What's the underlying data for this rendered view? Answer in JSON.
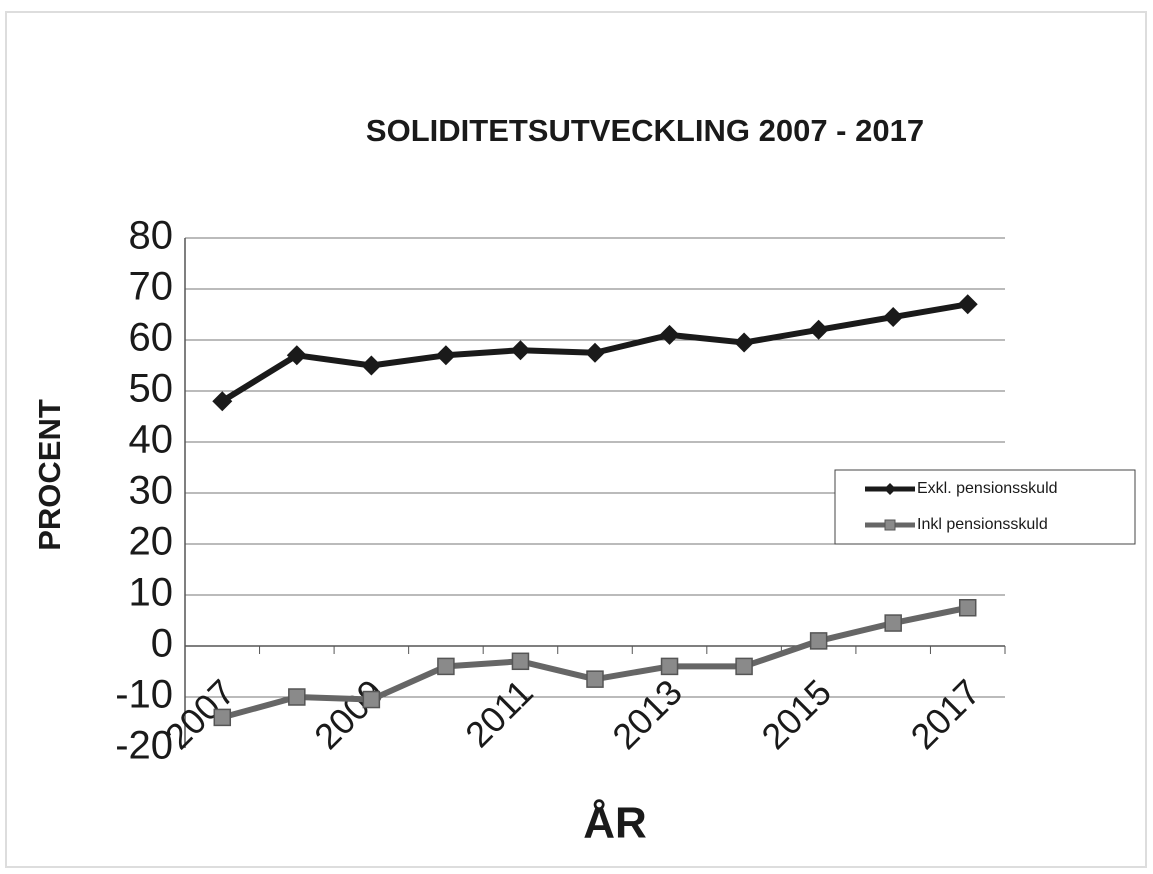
{
  "chart_data": {
    "type": "line",
    "title": "SOLIDITETSUTVECKLING 2007 - 2017",
    "y_label": "PROCENT",
    "x_label": "ÅR",
    "categories": [
      "2007",
      null,
      "2009",
      null,
      "2011",
      null,
      "2013",
      null,
      "2015",
      null,
      "2017"
    ],
    "series": [
      {
        "name": "Exkl. pensionsskuld",
        "color": "#1a1a1a",
        "marker": "diamond",
        "values": [
          48,
          57,
          55,
          57,
          58,
          57.5,
          61,
          59.5,
          62,
          64.5,
          67
        ]
      },
      {
        "name": "Inkl pensionsskuld",
        "color": "#666666",
        "marker": "square",
        "values": [
          -14,
          -10,
          -10.5,
          -4,
          -3,
          -6.5,
          -4,
          -4,
          1,
          4.5,
          7.5
        ]
      }
    ],
    "ylim": [
      -20,
      80
    ],
    "yticks": [
      -20,
      -10,
      0,
      10,
      20,
      30,
      40,
      50,
      60,
      70,
      80
    ],
    "grid": true,
    "legend": "right"
  }
}
